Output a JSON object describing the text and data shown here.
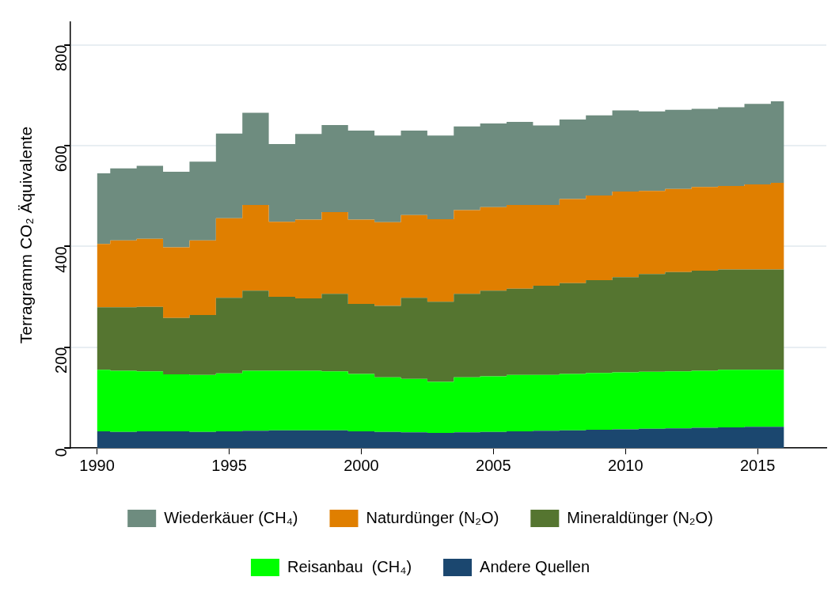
{
  "chart_data": {
    "type": "step",
    "stacked": true,
    "ylabel": "Terragramm CO₂ Äquivalente",
    "x": [
      1990,
      1991,
      1992,
      1993,
      1994,
      1995,
      1996,
      1997,
      1998,
      1999,
      2000,
      2001,
      2002,
      2003,
      2004,
      2005,
      2006,
      2007,
      2008,
      2009,
      2010,
      2011,
      2012,
      2013,
      2014,
      2015,
      2016
    ],
    "xlim": [
      1989,
      2017.6
    ],
    "xticks": [
      1990,
      1995,
      2000,
      2005,
      2010,
      2015
    ],
    "ylim": [
      0,
      845
    ],
    "yticks": [
      0,
      200,
      400,
      600,
      800
    ],
    "grid": "y",
    "legend": "bottom",
    "series": [
      {
        "name": "Andere Quellen",
        "type": "area",
        "color": "#1b476f",
        "values": [
          33,
          32,
          33,
          33,
          32,
          33,
          34,
          35,
          35,
          35,
          33,
          32,
          31,
          30,
          31,
          32,
          33,
          34,
          35,
          36,
          37,
          38,
          39,
          40,
          41,
          42,
          42
        ]
      },
      {
        "name": "Reisanbau  (CH₄)",
        "type": "area",
        "color": "#00ff00",
        "values": [
          122,
          121,
          119,
          113,
          113,
          115,
          119,
          118,
          118,
          117,
          114,
          108,
          106,
          101,
          109,
          110,
          112,
          111,
          112,
          113,
          113,
          113,
          113,
          113,
          114,
          113,
          113
        ]
      },
      {
        "name": "Mineraldünger (N₂O)",
        "type": "area",
        "color": "#557530",
        "values": [
          124,
          126,
          128,
          112,
          119,
          150,
          159,
          147,
          144,
          154,
          139,
          142,
          161,
          159,
          166,
          170,
          171,
          177,
          180,
          184,
          189,
          194,
          197,
          199,
          199,
          199,
          199
        ]
      },
      {
        "name": "Naturdünger (N₂O)",
        "type": "area",
        "color": "#e07f00",
        "values": [
          126,
          133,
          135,
          140,
          148,
          158,
          170,
          149,
          156,
          162,
          167,
          166,
          164,
          164,
          166,
          166,
          166,
          160,
          167,
          168,
          170,
          165,
          165,
          166,
          166,
          169,
          172
        ]
      },
      {
        "name": "Wiederkäuer (CH₄)",
        "type": "area",
        "color": "#6e8c7f",
        "values": [
          140,
          143,
          145,
          150,
          156,
          168,
          183,
          154,
          170,
          173,
          177,
          172,
          168,
          166,
          166,
          166,
          165,
          158,
          158,
          159,
          161,
          158,
          157,
          155,
          156,
          160,
          162
        ]
      }
    ]
  }
}
